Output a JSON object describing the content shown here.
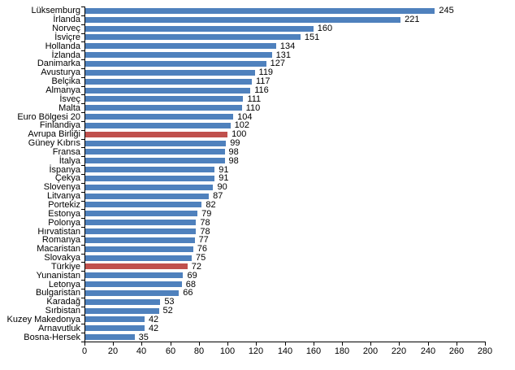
{
  "chart_data": {
    "type": "bar",
    "orientation": "horizontal",
    "title": "",
    "xlabel": "",
    "ylabel": "",
    "categories": [
      "Lüksemburg",
      "İrlanda",
      "Norveç",
      "İsviçre",
      "Hollanda",
      "İzlanda",
      "Danimarka",
      "Avusturya",
      "Belçika",
      "Almanya",
      "İsveç",
      "Malta",
      "Euro Bölgesi 20",
      "Finlandiya",
      "Avrupa Birliği",
      "Güney Kıbrıs",
      "Fransa",
      "İtalya",
      "İspanya",
      "Çekya",
      "Slovenya",
      "Litvanya",
      "Portekiz",
      "Estonya",
      "Polonya",
      "Hırvatistan",
      "Romanya",
      "Macaristan",
      "Slovakya",
      "Türkiye",
      "Yunanistan",
      "Letonya",
      "Bulgaristan",
      "Karadağ",
      "Sırbistan",
      "Kuzey Makedonya",
      "Arnavutluk",
      "Bosna-Hersek"
    ],
    "values": [
      245,
      221,
      160,
      151,
      134,
      131,
      127,
      119,
      117,
      116,
      111,
      110,
      104,
      102,
      100,
      99,
      98,
      98,
      91,
      91,
      90,
      87,
      82,
      79,
      78,
      78,
      77,
      76,
      75,
      72,
      69,
      68,
      66,
      53,
      52,
      42,
      42,
      35
    ],
    "highlight_indices": [
      14,
      29
    ],
    "highlighted_categories": [
      "Avrupa Birliği",
      "Türkiye"
    ],
    "colors": {
      "bar": "#4f81bd",
      "highlight": "#c0504d",
      "axis": "#000000",
      "text": "#000000",
      "background": "#ffffff"
    },
    "xlim": [
      0,
      280
    ],
    "xticks": [
      0,
      20,
      40,
      60,
      80,
      100,
      120,
      140,
      160,
      180,
      200,
      220,
      240,
      260,
      280
    ],
    "grid": false,
    "legend": null,
    "value_labels_shown": true
  }
}
